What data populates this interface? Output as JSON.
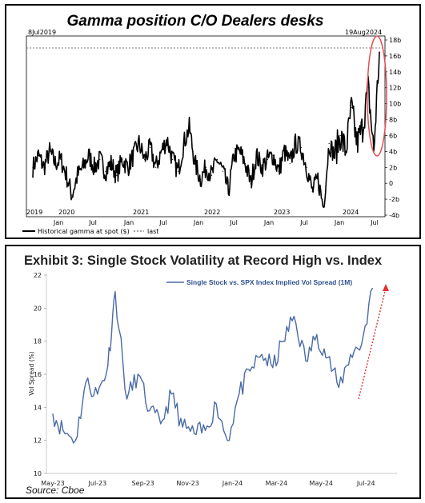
{
  "chart_data": [
    {
      "type": "line",
      "title": "Gamma position C/O Dealers desks",
      "date_range_start_label": "8Jul2019",
      "date_range_end_label": "19Aug2024",
      "y_ticks": [
        "18b",
        "16b",
        "14b",
        "12b",
        "10b",
        "8b",
        "6b",
        "4b",
        "2b",
        "0",
        "-2b",
        "-4b"
      ],
      "ylim": [
        -4,
        18
      ],
      "y_unit": "b",
      "year_labels": [
        "2019",
        "2020",
        "2021",
        "2022",
        "2023",
        "2024"
      ],
      "month_labels": [
        "Jan",
        "Jul",
        "Jan",
        "Jul",
        "Jan",
        "Jul",
        "Jan",
        "Jul",
        "Jan",
        "Jul",
        "Jan",
        "Jul"
      ],
      "legend": [
        "Historical gamma at spot ($)",
        "last"
      ],
      "last_value": 16.5,
      "highlight": "red ellipse around latest spike (Jul-Aug 2024)",
      "series": [
        {
          "name": "Historical gamma at spot ($)",
          "x": [
            "2019-07",
            "2019-08",
            "2019-09",
            "2019-10",
            "2019-11",
            "2019-12",
            "2020-01",
            "2020-02",
            "2020-03",
            "2020-04",
            "2020-05",
            "2020-06",
            "2020-07",
            "2020-08",
            "2020-09",
            "2020-10",
            "2020-11",
            "2020-12",
            "2021-01",
            "2021-02",
            "2021-03",
            "2021-04",
            "2021-05",
            "2021-06",
            "2021-07",
            "2021-08",
            "2021-09",
            "2021-10",
            "2021-11",
            "2021-12",
            "2022-01",
            "2022-02",
            "2022-03",
            "2022-04",
            "2022-05",
            "2022-06",
            "2022-07",
            "2022-08",
            "2022-09",
            "2022-10",
            "2022-11",
            "2022-12",
            "2023-01",
            "2023-02",
            "2023-03",
            "2023-04",
            "2023-05",
            "2023-06",
            "2023-07",
            "2023-08",
            "2023-09",
            "2023-10",
            "2023-11",
            "2023-12",
            "2024-01",
            "2024-02",
            "2024-03",
            "2024-04",
            "2024-05",
            "2024-06",
            "2024-07",
            "2024-07b",
            "2024-08"
          ],
          "values": [
            2.0,
            3.5,
            2.0,
            4.0,
            2.5,
            3.0,
            1.0,
            -1.5,
            1.0,
            2.0,
            3.5,
            2.0,
            3.0,
            1.5,
            2.5,
            1.0,
            3.0,
            2.0,
            3.5,
            5.0,
            3.0,
            4.5,
            2.0,
            4.0,
            5.5,
            3.0,
            1.5,
            5.0,
            7.0,
            2.5,
            0.5,
            2.0,
            1.0,
            3.0,
            1.5,
            -1.0,
            3.5,
            4.0,
            2.5,
            0.0,
            3.5,
            2.0,
            3.0,
            3.5,
            1.5,
            4.0,
            2.5,
            5.0,
            4.5,
            2.0,
            -1.0,
            0.5,
            -3.0,
            5.0,
            3.5,
            6.0,
            4.0,
            9.5,
            5.0,
            7.0,
            12.0,
            4.0,
            16.5
          ]
        }
      ]
    },
    {
      "type": "line",
      "title": "Exhibit 3: Single Stock Volatility at Record High vs. Index",
      "ylabel": "Vol Spread (%)",
      "ylim": [
        10,
        22
      ],
      "y_ticks": [
        "22",
        "20",
        "18",
        "16",
        "14",
        "12",
        "10"
      ],
      "x_tick_labels": [
        "May-23",
        "Jul-23",
        "Sep-23",
        "Nov-23",
        "Jan-24",
        "Mar-24",
        "May-24",
        "Jul-24"
      ],
      "source": "Source: Cboe",
      "annotation": "red dotted upward arrow",
      "series": [
        {
          "name": "Single Stock vs. SPX Index Implied Vol Spread (1M)",
          "x": [
            "2023-05-01",
            "2023-05-15",
            "2023-06-01",
            "2023-06-15",
            "2023-07-01",
            "2023-07-15",
            "2023-07-25",
            "2023-08-10",
            "2023-08-25",
            "2023-09-10",
            "2023-09-25",
            "2023-10-10",
            "2023-10-25",
            "2023-11-10",
            "2023-11-25",
            "2023-12-10",
            "2023-12-25",
            "2024-01-10",
            "2024-01-25",
            "2024-02-10",
            "2024-02-25",
            "2024-03-10",
            "2024-03-25",
            "2024-04-10",
            "2024-04-25",
            "2024-05-10",
            "2024-05-25",
            "2024-06-10",
            "2024-06-25",
            "2024-07-10"
          ],
          "values": [
            13.6,
            12.6,
            12.0,
            15.5,
            14.8,
            16.5,
            21.0,
            14.5,
            16.0,
            13.8,
            13.0,
            14.8,
            12.8,
            12.4,
            12.6,
            14.2,
            12.0,
            14.8,
            16.2,
            17.2,
            16.4,
            18.0,
            19.5,
            16.8,
            18.4,
            17.0,
            15.2,
            17.2,
            17.8,
            21.2
          ]
        }
      ]
    }
  ]
}
